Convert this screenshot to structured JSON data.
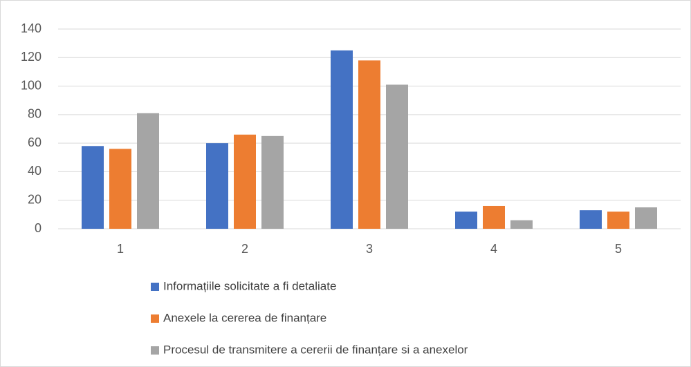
{
  "chart_data": {
    "type": "bar",
    "categories": [
      "1",
      "2",
      "3",
      "4",
      "5"
    ],
    "series": [
      {
        "name": "Informațiile solicitate a fi detaliate",
        "color": "#4472c4",
        "values": [
          58,
          60,
          125,
          12,
          13
        ]
      },
      {
        "name": "Anexele la cererea de finanțare",
        "color": "#ed7d31",
        "values": [
          56,
          66,
          118,
          16,
          12
        ]
      },
      {
        "name": "Procesul de transmitere a cererii de finanțare si a anexelor",
        "color": "#a5a5a5",
        "values": [
          81,
          65,
          101,
          6,
          15
        ]
      }
    ],
    "ylim": [
      0,
      140
    ],
    "yticks": [
      0,
      20,
      40,
      60,
      80,
      100,
      120,
      140
    ],
    "grid": true,
    "legend": "bottom"
  }
}
